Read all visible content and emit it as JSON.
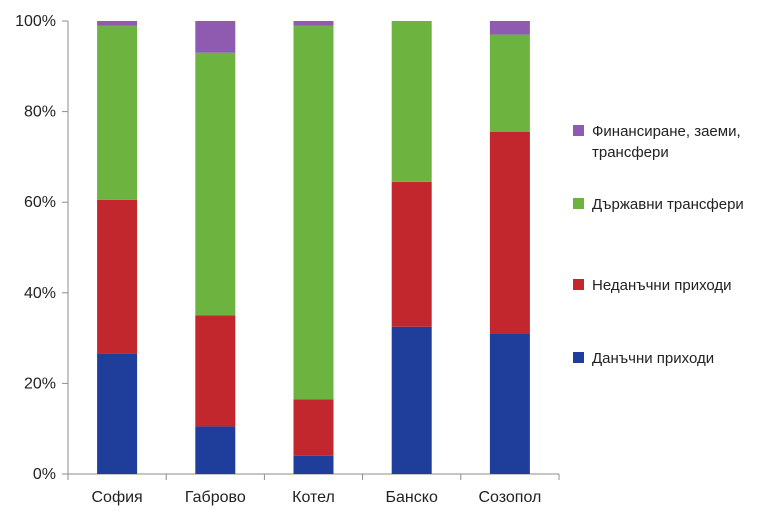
{
  "chart_data": {
    "type": "bar",
    "stacked": true,
    "percent": true,
    "categories": [
      "София",
      "Габрово",
      "Котел",
      "Банско",
      "Созопол"
    ],
    "series": [
      {
        "name": "Данъчни приходи",
        "color": "#1f3e9c",
        "values": [
          26.5,
          10.5,
          4,
          32.5,
          31
        ]
      },
      {
        "name": "Неданъчни приходи",
        "color": "#c1272d",
        "values": [
          34,
          24.5,
          12.5,
          32,
          44.5
        ]
      },
      {
        "name": "Държавни трансфери",
        "color": "#6cb33f",
        "values": [
          38.5,
          58,
          82.5,
          35.5,
          21.5
        ]
      },
      {
        "name": "Финансиране, заеми, трансфери",
        "color": "#8e5bb0",
        "values": [
          1,
          7,
          1,
          0,
          3
        ]
      }
    ],
    "y_ticks": [
      "0%",
      "20%",
      "40%",
      "60%",
      "80%",
      "100%"
    ],
    "ylim": [
      0,
      100
    ],
    "legend_position": "right",
    "grid": false
  }
}
